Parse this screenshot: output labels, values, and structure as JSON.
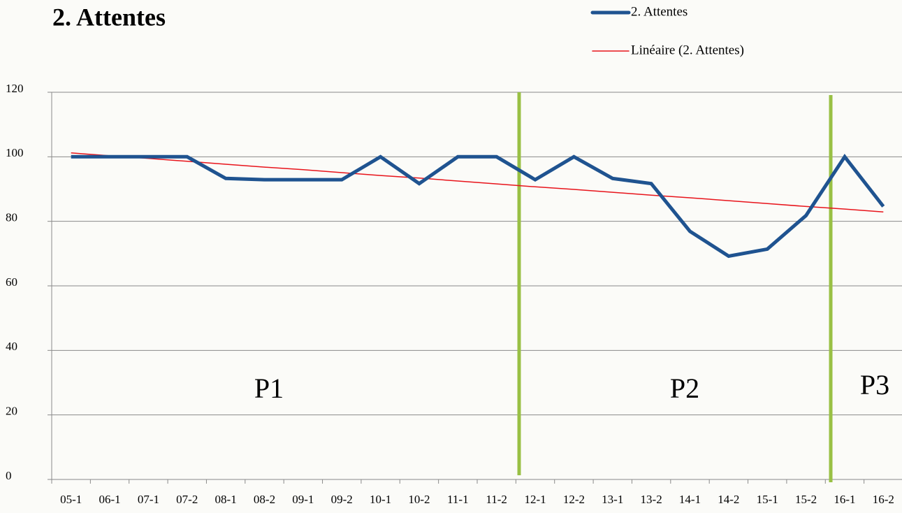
{
  "chart_data": {
    "type": "line",
    "title": "2. Attentes",
    "categories": [
      "05-1",
      "06-1",
      "07-1",
      "07-2",
      "08-1",
      "08-2",
      "09-1",
      "09-2",
      "10-1",
      "10-2",
      "11-1",
      "11-2",
      "12-1",
      "12-2",
      "13-1",
      "13-2",
      "14-1",
      "14-2",
      "15-1",
      "15-2",
      "16-1",
      "16-2"
    ],
    "series": [
      {
        "name": "2. Attentes",
        "color": "#1f5390",
        "width": 5,
        "values": [
          100,
          100,
          100,
          100,
          93.3,
          92.9,
          92.9,
          92.9,
          100,
          91.7,
          100,
          100,
          92.9,
          100,
          93.3,
          91.7,
          76.9,
          69.2,
          71.4,
          81.8,
          100,
          84.6
        ]
      },
      {
        "name": "Linéaire (2. Attentes)",
        "color": "#e8141b",
        "width": 1.5,
        "values": [
          101.2,
          100.3,
          99.5,
          98.6,
          97.7,
          96.8,
          96.0,
          95.1,
          94.2,
          93.4,
          92.5,
          91.6,
          90.7,
          89.9,
          89.0,
          88.1,
          87.3,
          86.4,
          85.5,
          84.6,
          83.8,
          82.9
        ]
      }
    ],
    "annotations": [
      "P1",
      "P2",
      "P3"
    ],
    "ylim": [
      0,
      120
    ],
    "yticks": [
      0,
      20,
      40,
      60,
      80,
      100,
      120
    ],
    "grid": true
  }
}
